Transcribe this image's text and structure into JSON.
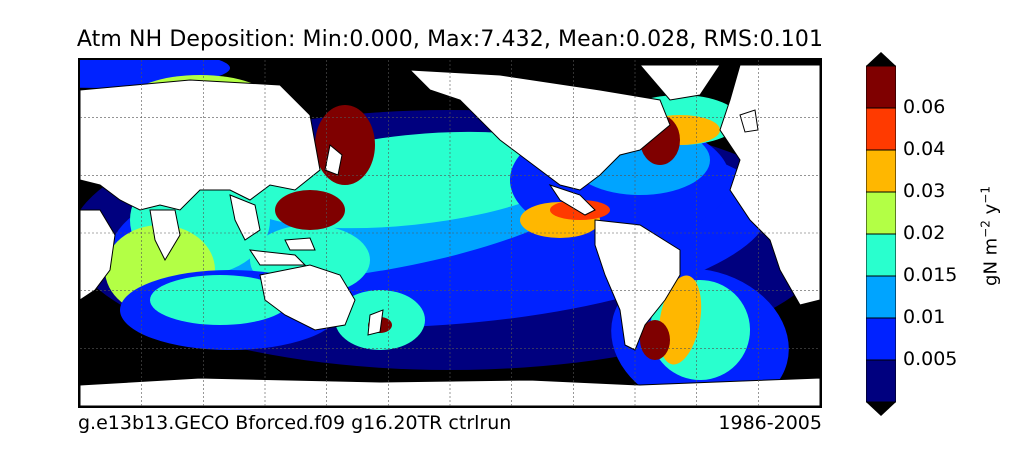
{
  "title": "Atm NH Deposition: Min:0.000, Max:7.432, Mean:0.028, RMS:0.101",
  "footer": {
    "case_name": "g.e13b13.GECO Bforced.f09 g16.20TR ctrlrun",
    "years": "1986-2005"
  },
  "colorbar": {
    "levels": [
      {
        "label": "0.005",
        "color": "#00007f"
      },
      {
        "label": "0.01",
        "color": "#0022ff"
      },
      {
        "label": "0.015",
        "color": "#00a4ff"
      },
      {
        "label": "0.02",
        "color": "#29ffce"
      },
      {
        "label": "0.03",
        "color": "#b3ff45"
      },
      {
        "label": "0.04",
        "color": "#ffb700"
      },
      {
        "label": "0.06",
        "color": "#ff3a00"
      },
      {
        "label": "",
        "color": "#7f0000"
      }
    ],
    "under_color": "#000000",
    "over_color": "#000000",
    "unit_base": "gN m",
    "unit_exp1": "−2",
    "unit_mid": " y",
    "unit_exp2": "−1"
  },
  "colors": {
    "land": "#ffffff",
    "lowest": "#000000",
    "coast": "#000000",
    "grid": "#555555"
  }
}
